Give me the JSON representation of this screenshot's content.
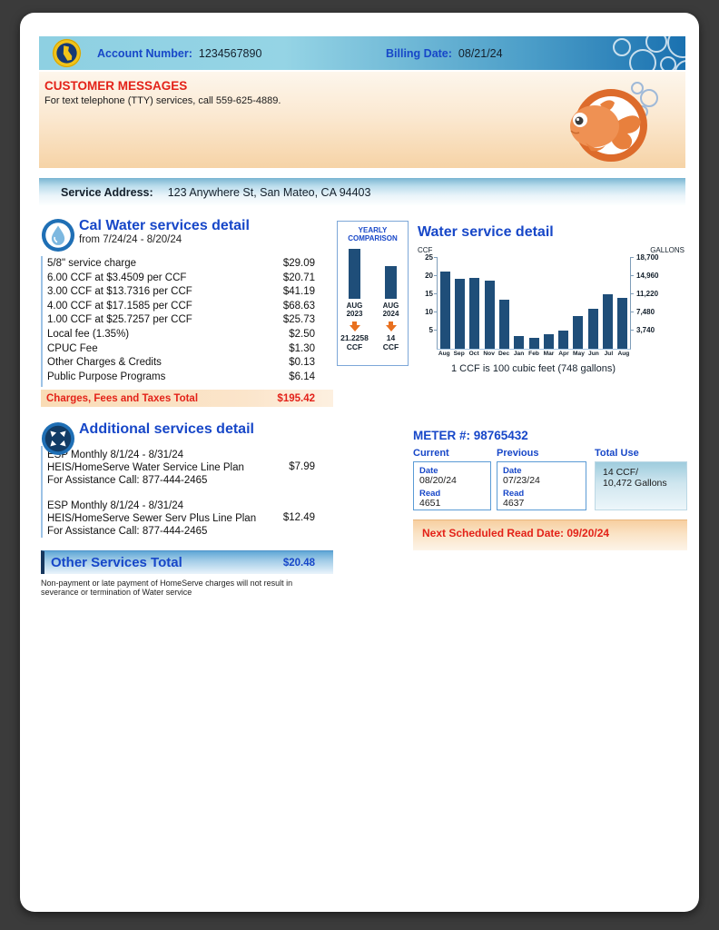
{
  "window": {
    "header": {
      "account_label": "Account Number:",
      "account_value": "1234567890",
      "billing_label": "Billing Date:",
      "billing_value": "08/21/24"
    },
    "customer_messages": {
      "title": "CUSTOMER MESSAGES",
      "body": "For text telephone (TTY) services, call 559-625-4889."
    },
    "service_address": {
      "label": "Service Address:",
      "value": "123 Anywhere St, San Mateo, CA 94403"
    },
    "services_detail": {
      "icon": "water-drop-icon",
      "title": "Cal Water services detail",
      "subtitle": "from 7/24/24 - 8/20/24",
      "items": [
        {
          "label": "5/8\" service charge",
          "amount": "$29.09"
        },
        {
          "label": "6.00 CCF at $3.4509 per CCF",
          "amount": "$20.71"
        },
        {
          "label": "3.00 CCF at $13.7316 per CCF",
          "amount": "$41.19"
        },
        {
          "label": "4.00 CCF at $17.1585 per CCF",
          "amount": "$68.63"
        },
        {
          "label": "1.00 CCF at $25.7257 per CCF",
          "amount": "$25.73"
        },
        {
          "label": "Local fee (1.35%)",
          "amount": "$2.50"
        },
        {
          "label": "CPUC Fee",
          "amount": "$1.30"
        },
        {
          "label": "Other Charges & Credits",
          "amount": "$0.13"
        },
        {
          "label": "Public Purpose Programs",
          "amount": "$6.14"
        }
      ],
      "total": {
        "label": "Charges, Fees and Taxes Total",
        "amount": "$195.42"
      }
    },
    "additional_services": {
      "icon": "expand-arrows-icon",
      "title": "Additional services detail",
      "items": [
        {
          "line1": "ESP Monthly  8/1/24 - 8/31/24",
          "line2": "HEIS/HomeServe Water Service Line Plan",
          "line3": "For Assistance Call: 877-444-2465",
          "amount": "$7.99"
        },
        {
          "line1": "ESP Monthly  8/1/24 - 8/31/24",
          "line2": "HEIS/HomeServe Sewer Serv Plus Line Plan",
          "line3": "For Assistance Call: 877-444-2465",
          "amount": "$12.49"
        }
      ],
      "total": {
        "label": "Other Services Total",
        "amount": "$20.48"
      },
      "footnote": "Non-payment or late payment of HomeServe charges will not result in severance or termination of Water service"
    },
    "meter": {
      "title": "METER #: 98765432",
      "current": {
        "header": "Current",
        "date_label": "Date",
        "date": "08/20/24",
        "read_label": "Read",
        "read": "4651"
      },
      "previous": {
        "header": "Previous",
        "date_label": "Date",
        "date": "07/23/24",
        "read_label": "Read",
        "read": "4637"
      },
      "total_use": {
        "header": "Total Use",
        "line1": "14 CCF/",
        "line2": "10,472 Gallons"
      },
      "next_read": "Next Scheduled Read Date: 09/20/24"
    }
  },
  "chart_data": [
    {
      "type": "bar",
      "title": "YEARLY COMPARISON",
      "categories": [
        "AUG 2023",
        "AUG 2024"
      ],
      "values": [
        21.2258,
        14
      ],
      "value_labels": [
        "21.2258 CCF",
        "14 CCF"
      ],
      "ylim": [
        0,
        25
      ],
      "bar_color": "#1f4e79",
      "annotation": "orange down arrow under each bar"
    },
    {
      "type": "bar",
      "title": "Water service detail",
      "categories": [
        "Aug",
        "Sep",
        "Oct",
        "Nov",
        "Dec",
        "Jan",
        "Feb",
        "Mar",
        "Apr",
        "May",
        "Jun",
        "Jul",
        "Aug"
      ],
      "values": [
        21.2,
        19.3,
        19.6,
        18.7,
        13.5,
        3.5,
        3.0,
        3.9,
        5.0,
        8.9,
        11.0,
        15.0,
        14.0
      ],
      "ylabel_left": "CCF",
      "ylabel_right": "GALLONS",
      "yticks_left": [
        5,
        10,
        15,
        20,
        25
      ],
      "yticks_right": [
        "3,740",
        "7,480",
        "11,220",
        "14,960",
        "18,700"
      ],
      "ylim": [
        0,
        25
      ],
      "grid": false,
      "legend": "none",
      "caption": "1 CCF is 100 cubic feet (748 gallons)",
      "bar_color": "#1f4e79"
    }
  ],
  "colors": {
    "accent_blue": "#1747c8",
    "navy_bar": "#1f4e79",
    "alert_red": "#e32219",
    "header_gradient_start": "#8ed0e2",
    "header_gradient_end": "#1a71b0",
    "peach_band": "#f9dcb6",
    "arrow_orange": "#e8701f"
  }
}
